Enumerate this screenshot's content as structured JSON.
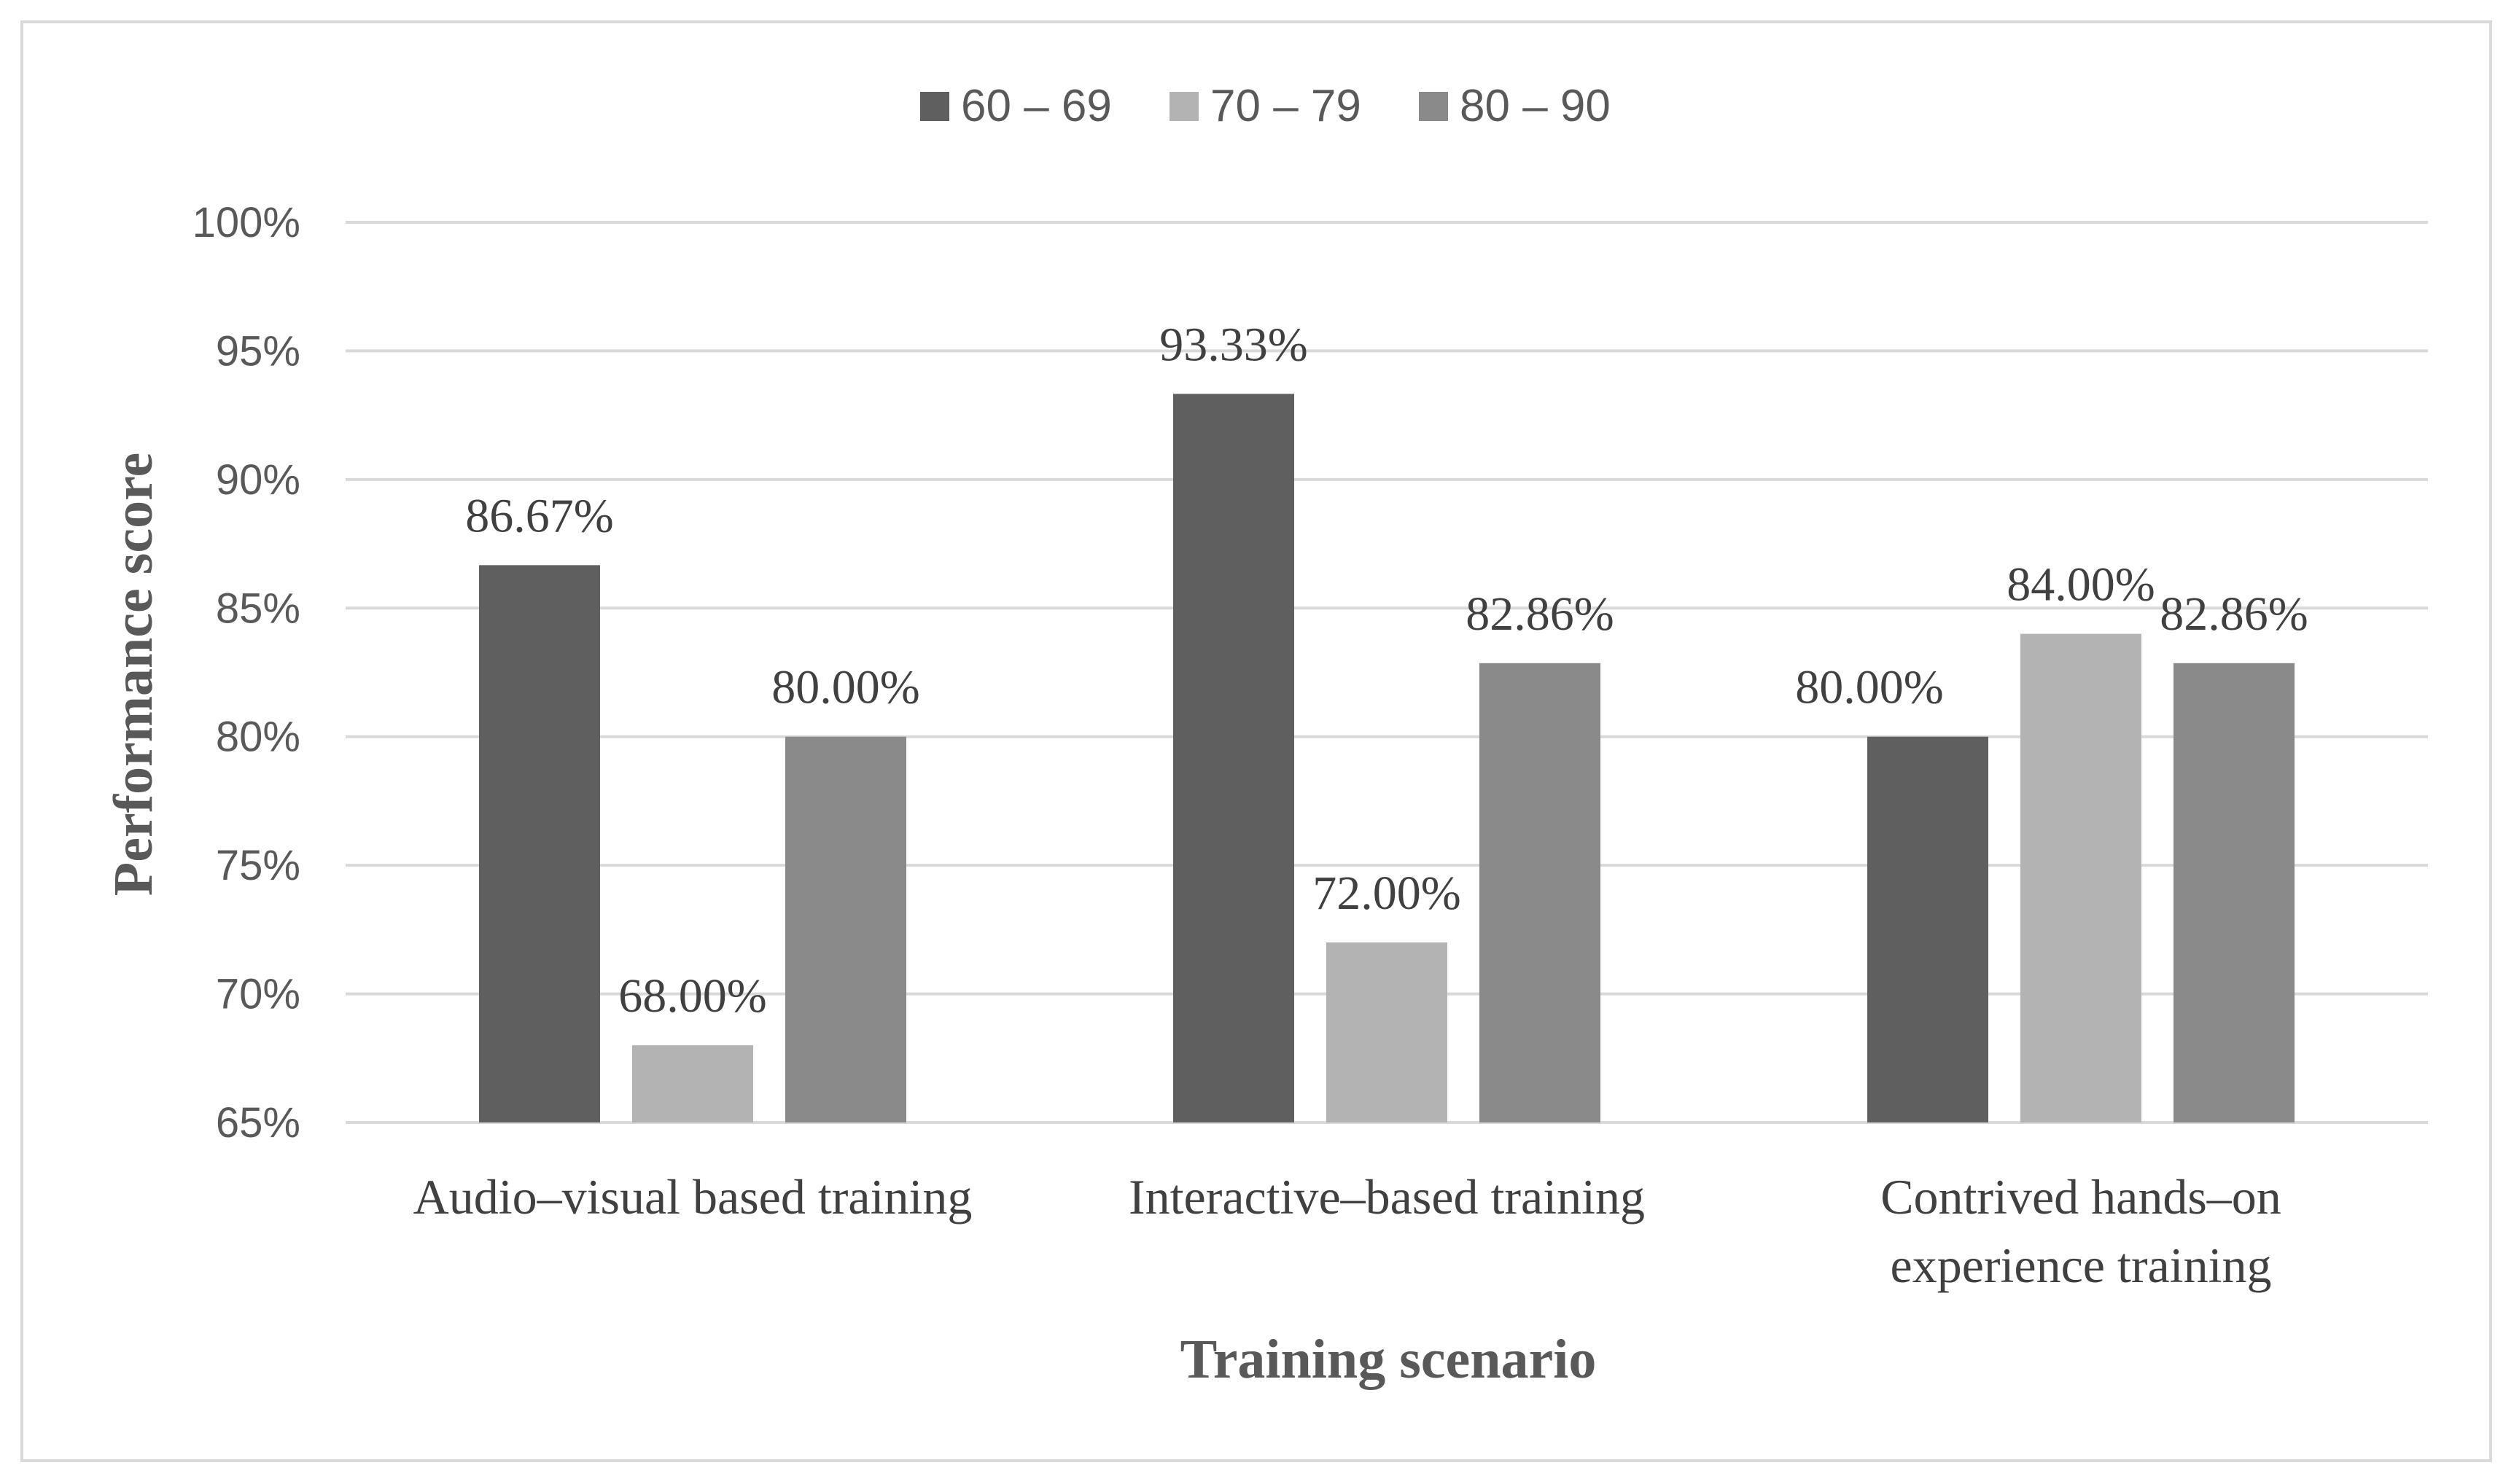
{
  "chart_data": {
    "type": "bar",
    "title": "",
    "xlabel": "Training scenario",
    "ylabel": "Performance score",
    "categories": [
      [
        "Audio–visual based training"
      ],
      [
        "Interactive–based training"
      ],
      [
        "Contrived hands–on",
        "experience training"
      ]
    ],
    "series": [
      {
        "name": "60 – 69",
        "color": "#5f5f5f",
        "values": [
          86.67,
          93.33,
          80.0
        ]
      },
      {
        "name": "70 – 79",
        "color": "#b3b3b3",
        "values": [
          68.0,
          72.0,
          84.0
        ]
      },
      {
        "name": "80 – 90",
        "color": "#8a8a8a",
        "values": [
          80.0,
          82.86,
          82.86
        ]
      }
    ],
    "ylim": [
      65,
      100
    ],
    "yticks": [
      65,
      70,
      75,
      80,
      85,
      90,
      95,
      100
    ],
    "ytick_labels": [
      "65%",
      "70%",
      "75%",
      "80%",
      "85%",
      "90%",
      "95%",
      "100%"
    ],
    "data_labels": [
      [
        "86.67%",
        "93.33%",
        "80.00%"
      ],
      [
        "68.00%",
        "72.00%",
        "84.00%"
      ],
      [
        "80.00%",
        "82.86%",
        "82.86%"
      ]
    ],
    "grid": true,
    "legend_position": "top-center",
    "gridline_color": "#d9d9d9"
  }
}
